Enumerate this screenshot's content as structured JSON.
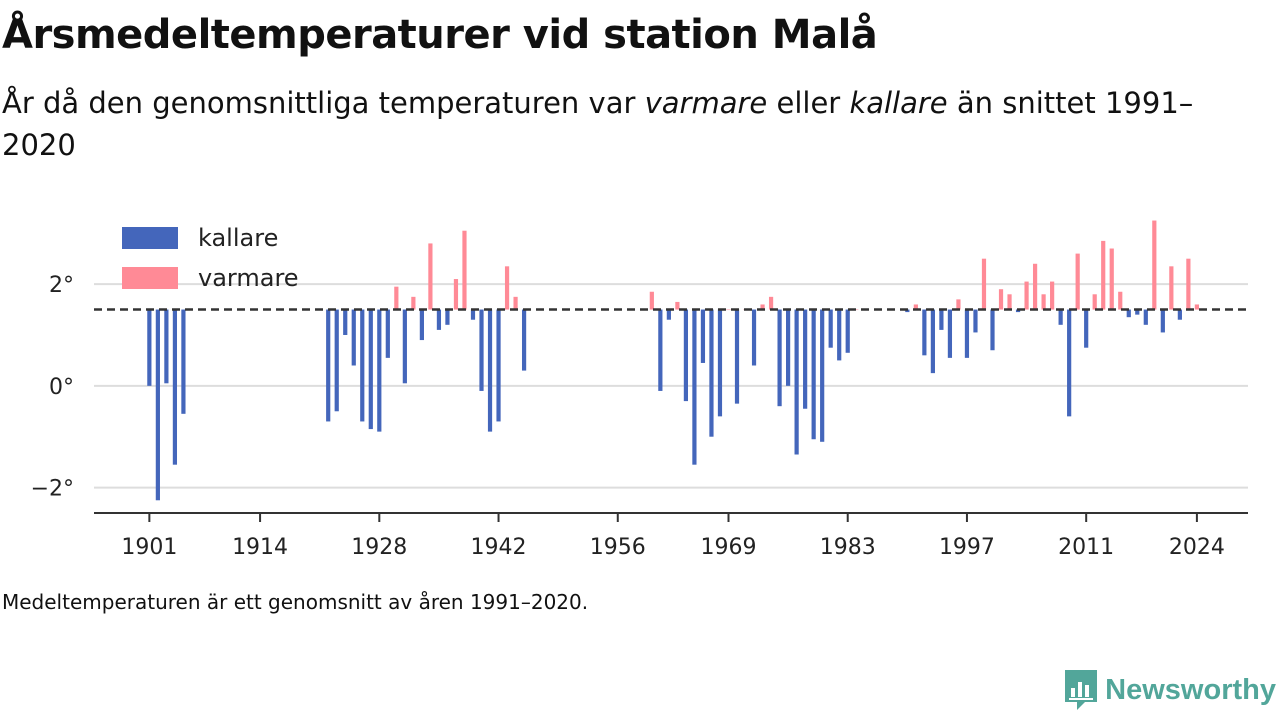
{
  "title": "Årsmedeltemperaturer vid station Malå",
  "subtitle": {
    "prefix": "År då den genomsnittliga temperaturen var ",
    "warm_word": "varmare",
    "middle": " eller ",
    "cold_word": "kallare",
    "suffix": " än snittet 1991–2020"
  },
  "footnote": "Medeltemperaturen är ett genomsnitt av åren 1991–2020.",
  "brand": {
    "name": "Newsworthy",
    "icon": "newsworthy-logo-icon"
  },
  "colors": {
    "cold": "#4466bb",
    "warm": "#ff8a96",
    "reference_line": "#333333",
    "grid": "#dddddd",
    "brand": "#52a69a"
  },
  "chart_data": {
    "type": "bar",
    "title": "",
    "xlabel": "",
    "ylabel": "",
    "baseline": 1.5,
    "ylim": [
      -2.5,
      3.3
    ],
    "xlim": [
      1894.5,
      2030
    ],
    "x_ticks": [
      1901,
      1914,
      1928,
      1942,
      1956,
      1969,
      1983,
      1997,
      2011,
      2024
    ],
    "y_ticks": [
      {
        "value": -2,
        "label": "−2°"
      },
      {
        "value": 0,
        "label": "0°"
      },
      {
        "value": 2,
        "label": "2°"
      }
    ],
    "grid": true,
    "legend_position": "top-left",
    "series": [
      {
        "name": "kallare",
        "color": "#4466bb"
      },
      {
        "name": "varmare",
        "color": "#ff8a96"
      }
    ],
    "x": [
      1901,
      1902,
      1903,
      1904,
      1905,
      1922,
      1923,
      1924,
      1925,
      1926,
      1927,
      1928,
      1929,
      1930,
      1931,
      1932,
      1933,
      1934,
      1935,
      1936,
      1937,
      1938,
      1939,
      1940,
      1941,
      1942,
      1943,
      1944,
      1945,
      1960,
      1961,
      1962,
      1963,
      1964,
      1965,
      1966,
      1967,
      1968,
      1969,
      1970,
      1971,
      1972,
      1973,
      1974,
      1975,
      1976,
      1977,
      1978,
      1979,
      1980,
      1981,
      1982,
      1983,
      1984,
      1990,
      1991,
      1992,
      1993,
      1994,
      1995,
      1996,
      1997,
      1998,
      1999,
      2000,
      2001,
      2002,
      2003,
      2004,
      2005,
      2006,
      2007,
      2008,
      2009,
      2010,
      2011,
      2012,
      2013,
      2014,
      2015,
      2016,
      2017,
      2018,
      2019,
      2020,
      2021,
      2022,
      2023,
      2024
    ],
    "values": [
      0.0,
      -2.25,
      0.05,
      -1.55,
      -0.55,
      -0.7,
      -0.5,
      1.0,
      0.4,
      -0.7,
      -0.85,
      -0.9,
      0.55,
      1.95,
      0.05,
      1.75,
      0.9,
      2.8,
      1.1,
      1.2,
      2.1,
      3.05,
      1.3,
      -0.1,
      -0.9,
      -0.7,
      2.35,
      1.75,
      0.3,
      1.85,
      -0.1,
      1.3,
      1.65,
      -0.3,
      -1.55,
      0.45,
      -1.0,
      -0.6,
      1.5,
      -0.35,
      1.5,
      0.4,
      1.6,
      1.75,
      -0.4,
      0.0,
      -1.35,
      -0.45,
      -1.05,
      -1.1,
      0.75,
      0.5,
      0.65,
      1.5,
      1.45,
      1.6,
      0.6,
      0.25,
      1.1,
      0.55,
      1.7,
      0.55,
      1.05,
      2.5,
      0.7,
      1.9,
      1.8,
      1.45,
      2.05,
      2.4,
      1.8,
      2.05,
      1.2,
      -0.6,
      2.6,
      0.75,
      1.8,
      2.85,
      2.7,
      1.85,
      1.35,
      1.4,
      1.2,
      3.25,
      1.05,
      2.35,
      1.3,
      2.5,
      1.6
    ]
  }
}
